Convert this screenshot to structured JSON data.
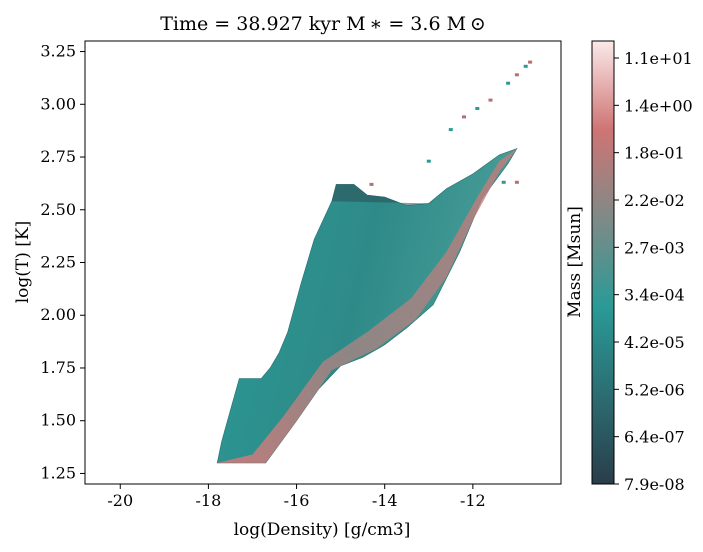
{
  "chart_data": {
    "type": "heatmap",
    "title": "Time = 38.927 kyr   M ∗ = 3.6 M ⊙",
    "xlabel": "log(Density) [g/cm3]",
    "ylabel": "log(T) [K]",
    "xlim": [
      -20.8,
      -10.0
    ],
    "ylim": [
      1.2,
      3.3
    ],
    "xticks": [
      -20,
      -18,
      -16,
      -14,
      -12
    ],
    "yticks": [
      1.25,
      1.5,
      1.75,
      2.0,
      2.25,
      2.5,
      2.75,
      3.0,
      3.25
    ],
    "xtick_labels": [
      "-20",
      "-18",
      "-16",
      "-14",
      "-12"
    ],
    "ytick_labels": [
      "1.25",
      "1.50",
      "1.75",
      "2.00",
      "2.25",
      "2.50",
      "2.75",
      "3.00",
      "3.25"
    ],
    "colorbar": {
      "label": "Mass [Msun]",
      "scale": "log",
      "ticks": [
        "7.9e-08",
        "6.4e-07",
        "5.2e-06",
        "4.2e-05",
        "3.4e-04",
        "2.7e-03",
        "2.2e-02",
        "1.8e-01",
        "1.4e+00",
        "1.1e+01"
      ],
      "colors": [
        "#2a3d4a",
        "#2b6d72",
        "#2a9a96",
        "#7f8a87",
        "#cf7474",
        "#fbe9e9"
      ]
    },
    "regions": [
      {
        "name": "main-distribution",
        "polygon": [
          [
            -17.8,
            1.3
          ],
          [
            -16.7,
            1.3
          ],
          [
            -16.0,
            1.5
          ],
          [
            -15.5,
            1.65
          ],
          [
            -15.0,
            1.76
          ],
          [
            -14.5,
            1.8
          ],
          [
            -14.0,
            1.86
          ],
          [
            -13.5,
            1.94
          ],
          [
            -12.9,
            2.05
          ],
          [
            -12.3,
            2.3
          ],
          [
            -11.8,
            2.55
          ],
          [
            -11.2,
            2.72
          ],
          [
            -11.0,
            2.79
          ],
          [
            -11.4,
            2.76
          ],
          [
            -12.0,
            2.67
          ],
          [
            -12.6,
            2.6
          ],
          [
            -13.0,
            2.53
          ],
          [
            -13.5,
            2.52
          ],
          [
            -14.0,
            2.56
          ],
          [
            -14.4,
            2.57
          ],
          [
            -14.7,
            2.62
          ],
          [
            -15.1,
            2.62
          ],
          [
            -15.2,
            2.54
          ],
          [
            -15.6,
            2.36
          ],
          [
            -15.9,
            2.15
          ],
          [
            -16.2,
            1.92
          ],
          [
            -16.4,
            1.82
          ],
          [
            -16.6,
            1.75
          ],
          [
            -16.8,
            1.7
          ],
          [
            -17.3,
            1.7
          ],
          [
            -17.5,
            1.55
          ],
          [
            -17.7,
            1.4
          ]
        ]
      },
      {
        "name": "dense-ridge",
        "polygon": [
          [
            -17.8,
            1.3
          ],
          [
            -16.7,
            1.3
          ],
          [
            -16.0,
            1.5
          ],
          [
            -15.2,
            1.74
          ],
          [
            -14.2,
            1.84
          ],
          [
            -13.3,
            1.98
          ],
          [
            -12.6,
            2.18
          ],
          [
            -12.0,
            2.45
          ],
          [
            -11.4,
            2.68
          ],
          [
            -11.0,
            2.79
          ],
          [
            -11.4,
            2.73
          ],
          [
            -11.9,
            2.56
          ],
          [
            -12.6,
            2.3
          ],
          [
            -13.4,
            2.08
          ],
          [
            -14.4,
            1.92
          ],
          [
            -15.4,
            1.78
          ],
          [
            -16.3,
            1.52
          ],
          [
            -17.0,
            1.34
          ]
        ]
      },
      {
        "name": "outer-sparse-stream",
        "points": [
          [
            -12.5,
            2.88
          ],
          [
            -12.2,
            2.94
          ],
          [
            -11.9,
            2.98
          ],
          [
            -11.6,
            3.02
          ],
          [
            -11.2,
            3.1
          ],
          [
            -11.0,
            3.14
          ],
          [
            -10.8,
            3.18
          ],
          [
            -10.7,
            3.2
          ],
          [
            -11.3,
            2.63
          ],
          [
            -11.0,
            2.63
          ],
          [
            -13.0,
            2.73
          ],
          [
            -14.3,
            2.62
          ]
        ]
      }
    ]
  }
}
